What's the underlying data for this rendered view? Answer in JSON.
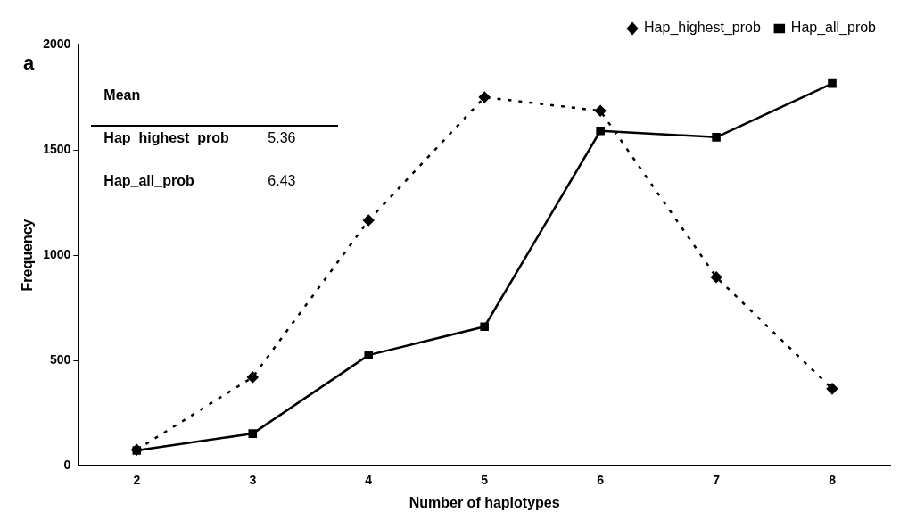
{
  "chart_data": {
    "type": "line",
    "xlabel": "Number of haplotypes",
    "ylabel": "Frequency",
    "categories": [
      "2",
      "3",
      "4",
      "5",
      "6",
      "7",
      "8"
    ],
    "series": [
      {
        "name": "Hap_highest_prob",
        "color": "#000000",
        "marker": "diamond",
        "line_style": "dotted",
        "values": [
          75,
          420,
          1165,
          1750,
          1685,
          895,
          365
        ]
      },
      {
        "name": "Hap_all_prob",
        "color": "#000000",
        "marker": "square",
        "line_style": "solid",
        "values": [
          72,
          152,
          525,
          660,
          1590,
          1560,
          1815
        ]
      }
    ],
    "ylim": [
      0,
      2000
    ],
    "yticks": [
      0,
      500,
      1000,
      1500,
      2000
    ],
    "grid": false,
    "legend": "top",
    "annotations": [
      "a",
      "Mean",
      "Hap_highest_prob",
      "5.36",
      "Hap_all_prob",
      "6.43"
    ]
  }
}
